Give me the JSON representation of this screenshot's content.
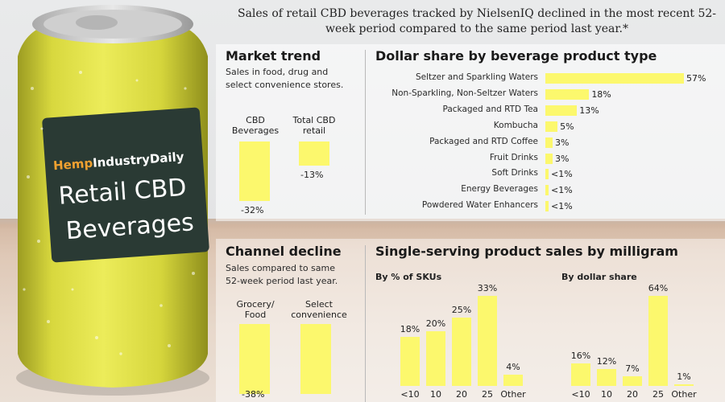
{
  "header": {
    "subtitle": "Sales of retail CBD beverages tracked by NielsenIQ declined in the most recent 52-week period compared to the same period last year.*"
  },
  "can": {
    "brand_part1": "Hemp",
    "brand_part2": "IndustryDaily",
    "line1": "Retail CBD",
    "line2": "Beverages"
  },
  "colors": {
    "bar": "#fcf86d",
    "can": "#e2e24a",
    "label": "#2a3a34"
  },
  "market_trend": {
    "title": "Market trend",
    "desc_line1": "Sales in food, drug and",
    "desc_line2": "select convenience stores.",
    "chart_data": {
      "type": "bar",
      "categories": [
        "CBD Beverages",
        "Total CBD retail"
      ],
      "values": [
        -32,
        -13
      ],
      "labels": [
        "-32%",
        "-13%"
      ],
      "head1_line1": "CBD",
      "head1_line2": "Beverages",
      "head2_line1": "Total CBD",
      "head2_line2": "retail"
    }
  },
  "dollar_share": {
    "title": "Dollar share by beverage product type",
    "chart_data": {
      "type": "bar",
      "orientation": "horizontal",
      "categories": [
        "Seltzer and Sparkling Waters",
        "Non-Sparkling, Non-Seltzer Waters",
        "Packaged and RTD Tea",
        "Kombucha",
        "Packaged and RTD Coffee",
        "Fruit Drinks",
        "Soft Drinks",
        "Energy Beverages",
        "Powdered Water Enhancers"
      ],
      "values": [
        57,
        18,
        13,
        5,
        3,
        3,
        0.5,
        0.5,
        0.5
      ],
      "labels": [
        "57%",
        "18%",
        "13%",
        "5%",
        "3%",
        "3%",
        "<1%",
        "<1%",
        "<1%"
      ]
    }
  },
  "channel_decline": {
    "title": "Channel decline",
    "desc_line1": "Sales compared to same",
    "desc_line2": "52-week period last year.",
    "chart_data": {
      "type": "bar",
      "categories": [
        "Grocery/Food",
        "Select convenience"
      ],
      "values": [
        -38,
        -38
      ],
      "labels": [
        "-38%",
        ""
      ],
      "head1_line1": "Grocery/",
      "head1_line2": "Food",
      "head2_line1": "Select",
      "head2_line2": "convenience"
    }
  },
  "single_serving": {
    "title": "Single-serving product sales by milligram",
    "chart_data": [
      {
        "type": "bar",
        "title": "By % of SKUs",
        "categories": [
          "<10",
          "10",
          "20",
          "25",
          "Other"
        ],
        "values": [
          18,
          20,
          25,
          33,
          4
        ],
        "labels": [
          "18%",
          "20%",
          "25%",
          "33%",
          "4%"
        ]
      },
      {
        "type": "bar",
        "title": "By dollar share",
        "categories": [
          "<10",
          "10",
          "20",
          "25",
          "Other"
        ],
        "values": [
          16,
          12,
          7,
          64,
          1
        ],
        "labels": [
          "16%",
          "12%",
          "7%",
          "64%",
          "1%"
        ]
      }
    ]
  }
}
